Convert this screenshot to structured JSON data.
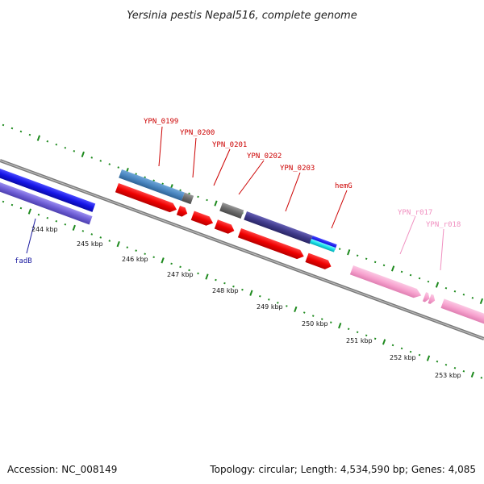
{
  "title": "Yersinia pestis Nepal516, complete genome",
  "footer": {
    "accession": "Accession: NC_008149",
    "topology": "Topology: circular; Length: 4,534,590 bp; Genes: 4,085"
  },
  "colors": {
    "backbone": "#7a7a7a",
    "tick": "#1e8a1e",
    "label_red": "#cc0000",
    "label_blue": "#1a1aa0",
    "label_pink": "#f08fc0"
  },
  "scale_labels": [
    "244 kbp",
    "245 kbp",
    "246 kbp",
    "247 kbp",
    "248 kbp",
    "249 kbp",
    "250 kbp",
    "251 kbp",
    "252 kbp",
    "253 kbp"
  ],
  "gene_labels": [
    "YPN_0199",
    "YPN_0200",
    "YPN_0201",
    "YPN_0202",
    "YPN_0203",
    "hemG",
    "YPN_r017",
    "YPN_r018",
    "fadB"
  ],
  "features": [
    {
      "name": "fadB-blue",
      "color": "#1515e6"
    },
    {
      "name": "fadB-purple",
      "color": "#6f5fd6"
    },
    {
      "name": "ypn0199-steelblue",
      "color": "#4a86c0"
    },
    {
      "name": "ypn0200-gray",
      "color": "#6b6b6b"
    },
    {
      "name": "ypn0201-gray",
      "color": "#6b6b6b"
    },
    {
      "name": "ypn0202-darkpurple",
      "color": "#3f3a8a"
    },
    {
      "name": "hemG-blue",
      "color": "#1515e6"
    },
    {
      "name": "hemG-cyan",
      "color": "#14e0e8"
    },
    {
      "name": "cds-red",
      "color": "#ee0000"
    },
    {
      "name": "rna-pink",
      "color": "#f7a3cf"
    }
  ]
}
